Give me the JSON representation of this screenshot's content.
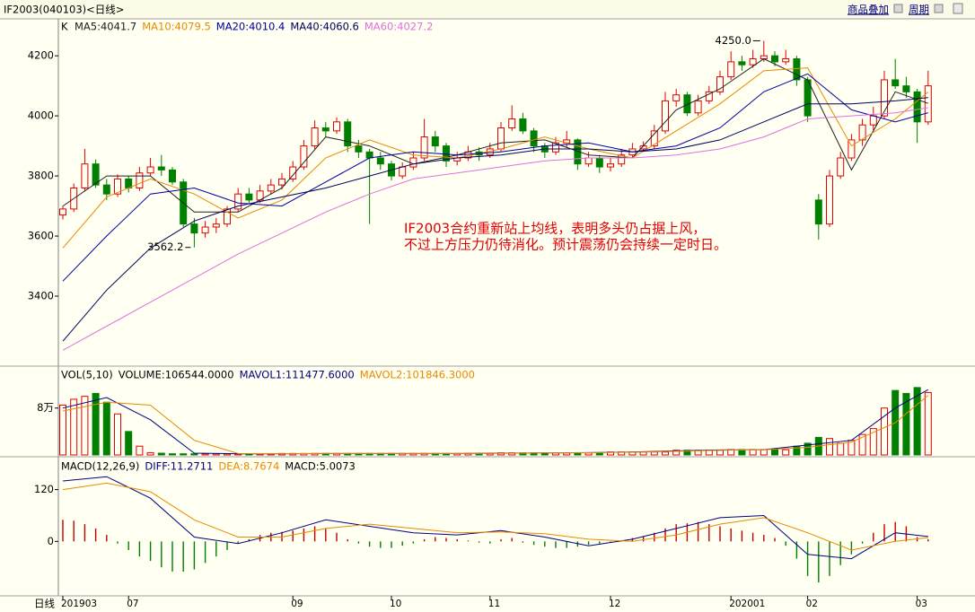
{
  "header": {
    "title": "IF2003(040103)<日线>",
    "menu": [
      "商品叠加",
      "周期"
    ]
  },
  "footer": "日线",
  "chart_data": [
    {
      "type": "candlestick",
      "label": "K",
      "ylim": [
        3170,
        4320
      ],
      "yticks": [
        3400,
        3600,
        3800,
        4000,
        4200
      ],
      "up_color": "#e00000",
      "down_color": "#008000",
      "candles": [
        [
          3670,
          3700,
          3655,
          3690
        ],
        [
          3690,
          3775,
          3680,
          3760
        ],
        [
          3760,
          3890,
          3750,
          3840
        ],
        [
          3840,
          3855,
          3760,
          3770
        ],
        [
          3770,
          3790,
          3720,
          3740
        ],
        [
          3740,
          3805,
          3730,
          3790
        ],
        [
          3790,
          3800,
          3745,
          3760
        ],
        [
          3760,
          3830,
          3750,
          3810
        ],
        [
          3810,
          3860,
          3800,
          3830
        ],
        [
          3830,
          3870,
          3800,
          3820
        ],
        [
          3820,
          3830,
          3770,
          3780
        ],
        [
          3780,
          3790,
          3630,
          3640
        ],
        [
          3640,
          3660,
          3562.2,
          3610
        ],
        [
          3610,
          3650,
          3595,
          3630
        ],
        [
          3630,
          3660,
          3610,
          3640
        ],
        [
          3640,
          3700,
          3630,
          3690
        ],
        [
          3690,
          3760,
          3680,
          3740
        ],
        [
          3740,
          3760,
          3710,
          3720
        ],
        [
          3720,
          3770,
          3710,
          3750
        ],
        [
          3750,
          3790,
          3740,
          3770
        ],
        [
          3770,
          3810,
          3755,
          3790
        ],
        [
          3790,
          3850,
          3780,
          3830
        ],
        [
          3830,
          3920,
          3820,
          3900
        ],
        [
          3900,
          3985,
          3890,
          3960
        ],
        [
          3960,
          3980,
          3930,
          3950
        ],
        [
          3950,
          3995,
          3940,
          3980
        ],
        [
          3980,
          3990,
          3880,
          3900
        ],
        [
          3900,
          3920,
          3860,
          3880
        ],
        [
          3880,
          3890,
          3640,
          3860
        ],
        [
          3860,
          3880,
          3820,
          3840
        ],
        [
          3840,
          3850,
          3785,
          3800
        ],
        [
          3800,
          3845,
          3790,
          3830
        ],
        [
          3830,
          3880,
          3820,
          3860
        ],
        [
          3860,
          3990,
          3850,
          3930
        ],
        [
          3930,
          3950,
          3880,
          3900
        ],
        [
          3900,
          3910,
          3830,
          3850
        ],
        [
          3850,
          3880,
          3835,
          3860
        ],
        [
          3860,
          3900,
          3850,
          3880
        ],
        [
          3880,
          3895,
          3850,
          3870
        ],
        [
          3870,
          3910,
          3860,
          3890
        ],
        [
          3890,
          3980,
          3880,
          3960
        ],
        [
          3960,
          4035,
          3950,
          3990
        ],
        [
          3990,
          4010,
          3940,
          3950
        ],
        [
          3950,
          3960,
          3880,
          3900
        ],
        [
          3900,
          3910,
          3860,
          3880
        ],
        [
          3880,
          3930,
          3870,
          3910
        ],
        [
          3910,
          3950,
          3895,
          3920
        ],
        [
          3920,
          3925,
          3820,
          3840
        ],
        [
          3840,
          3880,
          3830,
          3860
        ],
        [
          3860,
          3870,
          3810,
          3830
        ],
        [
          3830,
          3860,
          3815,
          3840
        ],
        [
          3840,
          3890,
          3830,
          3870
        ],
        [
          3870,
          3910,
          3860,
          3890
        ],
        [
          3890,
          3915,
          3880,
          3900
        ],
        [
          3900,
          3970,
          3890,
          3950
        ],
        [
          3950,
          4080,
          3940,
          4050
        ],
        [
          4050,
          4090,
          4030,
          4070
        ],
        [
          4070,
          4080,
          4000,
          4010
        ],
        [
          4010,
          4070,
          4000,
          4050
        ],
        [
          4050,
          4100,
          4040,
          4080
        ],
        [
          4080,
          4150,
          4070,
          4130
        ],
        [
          4130,
          4215,
          4120,
          4180
        ],
        [
          4180,
          4200,
          4150,
          4170
        ],
        [
          4170,
          4220,
          4160,
          4190
        ],
        [
          4190,
          4250.0,
          4180,
          4200
        ],
        [
          4200,
          4215,
          4165,
          4180
        ],
        [
          4180,
          4220,
          4170,
          4190
        ],
        [
          4190,
          4200,
          4100,
          4120
        ],
        [
          4120,
          4130,
          3980,
          4000
        ],
        [
          3720,
          3740,
          3588,
          3640
        ],
        [
          3640,
          3820,
          3630,
          3800
        ],
        [
          3800,
          3880,
          3790,
          3860
        ],
        [
          3860,
          3940,
          3850,
          3920
        ],
        [
          3920,
          3990,
          3900,
          3970
        ],
        [
          3970,
          4030,
          3950,
          4000
        ],
        [
          4000,
          4150,
          3990,
          4120
        ],
        [
          4120,
          4190,
          4090,
          4100
        ],
        [
          4100,
          4130,
          4060,
          4080
        ],
        [
          4080,
          4090,
          3910,
          3980
        ],
        [
          3980,
          4150,
          3970,
          4100
        ]
      ],
      "line_x": [
        0,
        4,
        8,
        12,
        16,
        20,
        24,
        28,
        32,
        36,
        40,
        44,
        48,
        52,
        56,
        60,
        64,
        68,
        72,
        76,
        79
      ],
      "series": [
        {
          "name": "MA5",
          "legend": "MA5:4041.7",
          "color": "#202020",
          "values": [
            3700,
            3800,
            3800,
            3680,
            3680,
            3760,
            3930,
            3900,
            3840,
            3870,
            3910,
            3920,
            3870,
            3860,
            4020,
            4090,
            4190,
            4120,
            3820,
            4080,
            4041.7
          ]
        },
        {
          "name": "MA10",
          "legend": "MA10:4079.5",
          "color": "#e88a00",
          "values": [
            3560,
            3730,
            3790,
            3740,
            3660,
            3720,
            3860,
            3920,
            3870,
            3860,
            3890,
            3930,
            3890,
            3860,
            3950,
            4040,
            4150,
            4160,
            3900,
            3990,
            4079.5
          ]
        },
        {
          "name": "MA20",
          "legend": "MA20:4010.4",
          "color": "#0000a0",
          "values": [
            3450,
            3600,
            3740,
            3760,
            3710,
            3700,
            3780,
            3860,
            3880,
            3870,
            3880,
            3900,
            3910,
            3880,
            3900,
            3960,
            4080,
            4140,
            4020,
            3980,
            4010.4
          ]
        },
        {
          "name": "MA40",
          "legend": "MA40:4060.6",
          "color": "#000060",
          "values": [
            3250,
            3420,
            3560,
            3650,
            3700,
            3730,
            3760,
            3800,
            3840,
            3860,
            3870,
            3890,
            3890,
            3880,
            3890,
            3920,
            3980,
            4040,
            4040,
            4050,
            4060.6
          ]
        },
        {
          "name": "MA60",
          "legend": "MA60:4027.2",
          "color": "#e070e0",
          "values": [
            3220,
            3300,
            3380,
            3460,
            3540,
            3610,
            3680,
            3740,
            3790,
            3810,
            3830,
            3850,
            3860,
            3860,
            3870,
            3890,
            3930,
            3990,
            4000,
            4010,
            4027.2
          ]
        }
      ],
      "annotations": [
        "4250.0",
        "3562.2"
      ],
      "note": [
        "IF2003合约重新站上均线，表明多头仍占据上风，",
        "不过上方压力仍待消化。预计震荡仍会持续一定时日。"
      ]
    },
    {
      "type": "bar",
      "label": "VOL(5,10)",
      "volume_label": "VOLUME:106544.0000",
      "ylim": [
        0,
        150000
      ],
      "yticks": [
        {
          "value": 80000,
          "label": "8万"
        }
      ],
      "values": [
        85000,
        95000,
        100000,
        105000,
        90000,
        70000,
        40000,
        15000,
        4000,
        3000,
        2000,
        2000,
        2000,
        2000,
        2000,
        2000,
        2000,
        2000,
        2000,
        2000,
        2500,
        2500,
        2500,
        2500,
        2500,
        2500,
        2500,
        2500,
        2500,
        2500,
        2500,
        2500,
        2500,
        2500,
        2500,
        2500,
        2500,
        2500,
        2500,
        2500,
        3500,
        3500,
        3500,
        3500,
        3500,
        3500,
        3500,
        3500,
        3500,
        3500,
        5000,
        5000,
        5000,
        5000,
        5000,
        5000,
        8000,
        8000,
        8000,
        8000,
        8000,
        9000,
        9000,
        9000,
        9000,
        9000,
        9000,
        15000,
        20000,
        30000,
        28000,
        20000,
        25000,
        35000,
        45000,
        80000,
        110000,
        105000,
        115000,
        106544
      ],
      "line_x": [
        0,
        4,
        8,
        12,
        16,
        20,
        24,
        28,
        32,
        36,
        40,
        44,
        48,
        52,
        56,
        60,
        64,
        68,
        72,
        76,
        79
      ],
      "series": [
        {
          "name": "MAVOL1",
          "legend": "MAVOL1:111477.6000",
          "color": "#000080",
          "values": [
            80000,
            98000,
            60000,
            3000,
            2000,
            2200,
            2500,
            2500,
            2500,
            2500,
            3000,
            3500,
            4000,
            5000,
            7000,
            8500,
            9000,
            17000,
            25000,
            80000,
            111477.6
          ]
        },
        {
          "name": "MAVOL2",
          "legend": "MAVOL2:101846.3000",
          "color": "#e88a00",
          "values": [
            75000,
            90000,
            85000,
            25000,
            2500,
            2100,
            2400,
            2500,
            2500,
            2500,
            2800,
            3300,
            3800,
            4600,
            6200,
            8000,
            8800,
            13000,
            22000,
            55000,
            101846.3
          ]
        }
      ]
    },
    {
      "type": "macd",
      "label": "MACD(12,26,9)",
      "ylim": [
        -124,
        194
      ],
      "yticks": [
        0,
        120
      ],
      "hist_legend": "MACD:5.0073",
      "up_color": "#c00000",
      "down_color": "#008000",
      "hist": [
        50,
        48,
        40,
        30,
        15,
        -5,
        -20,
        -35,
        -45,
        -60,
        -70,
        -70,
        -65,
        -50,
        -35,
        -20,
        -5,
        5,
        15,
        20,
        22,
        25,
        30,
        35,
        30,
        20,
        5,
        -5,
        -12,
        -15,
        -15,
        -10,
        -5,
        5,
        10,
        8,
        5,
        2,
        -3,
        -5,
        5,
        8,
        -3,
        -8,
        -12,
        -15,
        -15,
        -12,
        -8,
        -5,
        -3,
        3,
        8,
        12,
        20,
        30,
        40,
        42,
        45,
        40,
        35,
        30,
        25,
        20,
        15,
        8,
        -10,
        -40,
        -80,
        -95,
        -80,
        -55,
        -30,
        -5,
        20,
        40,
        45,
        35,
        10,
        5.0073
      ],
      "line_x": [
        0,
        4,
        8,
        12,
        16,
        20,
        24,
        28,
        32,
        36,
        40,
        44,
        48,
        52,
        56,
        60,
        64,
        68,
        72,
        76,
        79
      ],
      "series": [
        {
          "name": "DIFF",
          "legend": "DIFF:11.2711",
          "color": "#000080",
          "values": [
            140,
            150,
            100,
            10,
            -5,
            20,
            50,
            35,
            20,
            15,
            25,
            10,
            -10,
            5,
            30,
            55,
            60,
            -30,
            -40,
            20,
            11.2711
          ]
        },
        {
          "name": "DEA",
          "legend": "DEA:8.7674",
          "color": "#e88a00",
          "values": [
            120,
            135,
            115,
            50,
            10,
            10,
            30,
            40,
            30,
            20,
            22,
            18,
            5,
            0,
            15,
            40,
            55,
            20,
            -20,
            0,
            8.7674
          ]
        }
      ],
      "xticks": [
        {
          "value": 0,
          "label": "201903"
        },
        {
          "value": 6,
          "label": "07"
        },
        {
          "value": 21,
          "label": "09"
        },
        {
          "value": 30,
          "label": "10"
        },
        {
          "value": 39,
          "label": "11"
        },
        {
          "value": 50,
          "label": "12"
        },
        {
          "value": 61,
          "label": "202001"
        },
        {
          "value": 68,
          "label": "02"
        },
        {
          "value": 78,
          "label": "03"
        }
      ]
    }
  ]
}
